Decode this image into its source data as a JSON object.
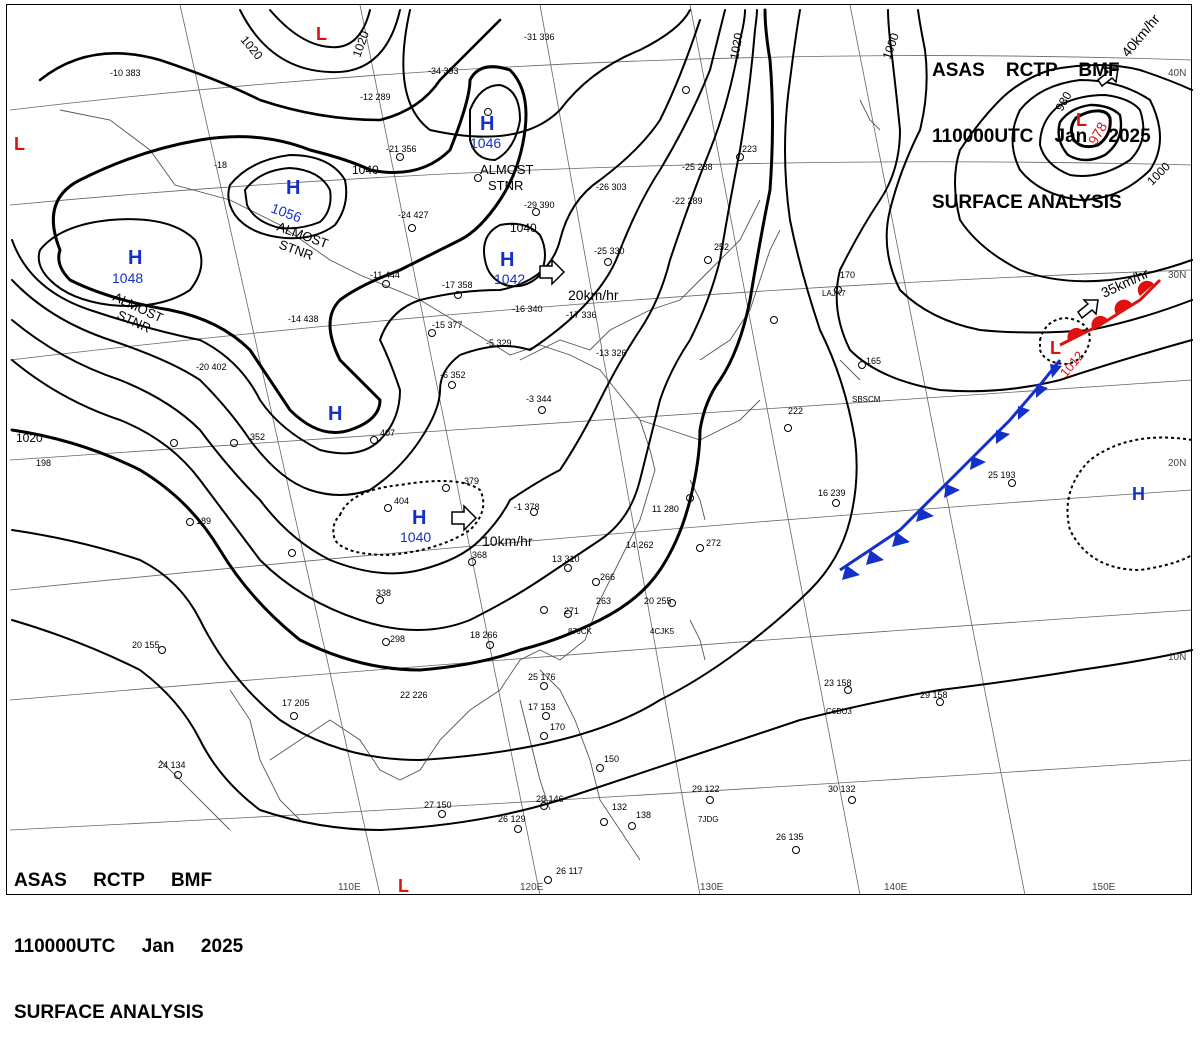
{
  "header": {
    "line1": "ASAS    RCTP    BMF",
    "line2": "110000UTC    Jan    2025",
    "line3": "SURFACE ANALYSIS"
  },
  "footer": {
    "line1": "ASAS     RCTP     BMF",
    "line2": "110000UTC     Jan     2025",
    "line3": "SURFACE ANALYSIS"
  },
  "colors": {
    "high": "#1430c8",
    "low": "#e01010",
    "isobar": "#000000",
    "grid": "#555555",
    "coast": "#555555",
    "cold_front": "#1430c8",
    "warm_front": "#e01010"
  },
  "lon_labels": [
    "110E",
    "120E",
    "130E",
    "140E",
    "150E"
  ],
  "lat_labels": [
    "40N",
    "30N",
    "20N",
    "10N"
  ],
  "isobar_labels": [
    "1020",
    "1020",
    "1020",
    "1020",
    "1040",
    "1040",
    "1000",
    "1000",
    "980"
  ],
  "pressure_centers": [
    {
      "type": "H",
      "value": "1048",
      "note": "ALMOST\nSTNR"
    },
    {
      "type": "H",
      "value": "1056",
      "note": "ALMOST\nSTNR"
    },
    {
      "type": "H",
      "value": "1046",
      "note": "ALMOST\nSTNR"
    },
    {
      "type": "H",
      "value": "1042",
      "motion": "20km/hr"
    },
    {
      "type": "H",
      "value": "1040",
      "motion": "10km/hr"
    },
    {
      "type": "H",
      "value": ""
    },
    {
      "type": "H",
      "value": ""
    },
    {
      "type": "L",
      "value": "978",
      "motion": "40km/hr"
    },
    {
      "type": "L",
      "value": "1012",
      "motion": "35km/hr"
    },
    {
      "type": "L",
      "value": ""
    },
    {
      "type": "L",
      "value": ""
    },
    {
      "type": "L",
      "value": ""
    }
  ],
  "stations": [
    {
      "t": "-10",
      "p": "383"
    },
    {
      "t": "-31",
      "p": "336"
    },
    {
      "t": "-34",
      "p": "393"
    },
    {
      "t": "-12",
      "p": "289"
    },
    {
      "t": "-21",
      "p": "356"
    },
    {
      "t": "-18",
      "p": ""
    },
    {
      "t": "-26",
      "p": "303"
    },
    {
      "t": "-25",
      "p": "288"
    },
    {
      "t": "-22",
      "p": "289"
    },
    {
      "t": "-29",
      "p": "390"
    },
    {
      "t": "-24",
      "p": "427"
    },
    {
      "t": "-25",
      "p": "330"
    },
    {
      "t": "-17",
      "p": "358"
    },
    {
      "t": "-16",
      "p": "340"
    },
    {
      "t": "-17",
      "p": "336"
    },
    {
      "t": "-14",
      "p": "438"
    },
    {
      "t": "-15",
      "p": "377"
    },
    {
      "t": "-5",
      "p": "329"
    },
    {
      "t": "-11",
      "p": "444"
    },
    {
      "t": "-13",
      "p": "326"
    },
    {
      "t": "-20",
      "p": "402"
    },
    {
      "t": "-6",
      "p": "352"
    },
    {
      "t": "-3",
      "p": "344"
    },
    {
      "t": "",
      "p": "252"
    },
    {
      "t": "",
      "p": "223"
    },
    {
      "t": "",
      "p": "170"
    },
    {
      "t": "",
      "p": "222"
    },
    {
      "t": "",
      "p": "165"
    },
    {
      "t": "",
      "p": "352"
    },
    {
      "t": "",
      "p": "407"
    },
    {
      "t": "",
      "p": "198"
    },
    {
      "t": "",
      "p": "189"
    },
    {
      "t": "",
      "p": "404"
    },
    {
      "t": "",
      "p": "379"
    },
    {
      "t": "-1",
      "p": "378"
    },
    {
      "t": "",
      "p": "368"
    },
    {
      "t": "11",
      "p": "280"
    },
    {
      "t": "14",
      "p": "262"
    },
    {
      "t": "",
      "p": "272"
    },
    {
      "t": "16",
      "p": "239"
    },
    {
      "t": "25",
      "p": "193"
    },
    {
      "t": "13",
      "p": "310"
    },
    {
      "t": "",
      "p": "266"
    },
    {
      "t": "",
      "p": "338"
    },
    {
      "t": "",
      "p": "298"
    },
    {
      "t": "",
      "p": "271"
    },
    {
      "t": "",
      "p": "263"
    },
    {
      "t": "20",
      "p": "255"
    },
    {
      "t": "18",
      "p": "266"
    },
    {
      "t": "22",
      "p": "226"
    },
    {
      "t": "17",
      "p": "205"
    },
    {
      "t": "20",
      "p": "155"
    },
    {
      "t": "25",
      "p": "176"
    },
    {
      "t": "17",
      "p": "153"
    },
    {
      "t": "",
      "p": "170"
    },
    {
      "t": "23",
      "p": "158"
    },
    {
      "t": "29",
      "p": "158"
    },
    {
      "t": "",
      "p": "150"
    },
    {
      "t": "29",
      "p": "122"
    },
    {
      "t": "30",
      "p": "132"
    },
    {
      "t": "24",
      "p": "134"
    },
    {
      "t": "27",
      "p": "150"
    },
    {
      "t": "26",
      "p": "129"
    },
    {
      "t": "28",
      "p": "146"
    },
    {
      "t": "",
      "p": "132"
    },
    {
      "t": "",
      "p": "138"
    },
    {
      "t": "26",
      "p": "135"
    },
    {
      "t": "26",
      "p": "117"
    }
  ],
  "ship_ids": [
    "LAJK7",
    "SBSCM",
    "4CJK5",
    "C6BU3",
    "7JDG",
    "87JCK"
  ]
}
